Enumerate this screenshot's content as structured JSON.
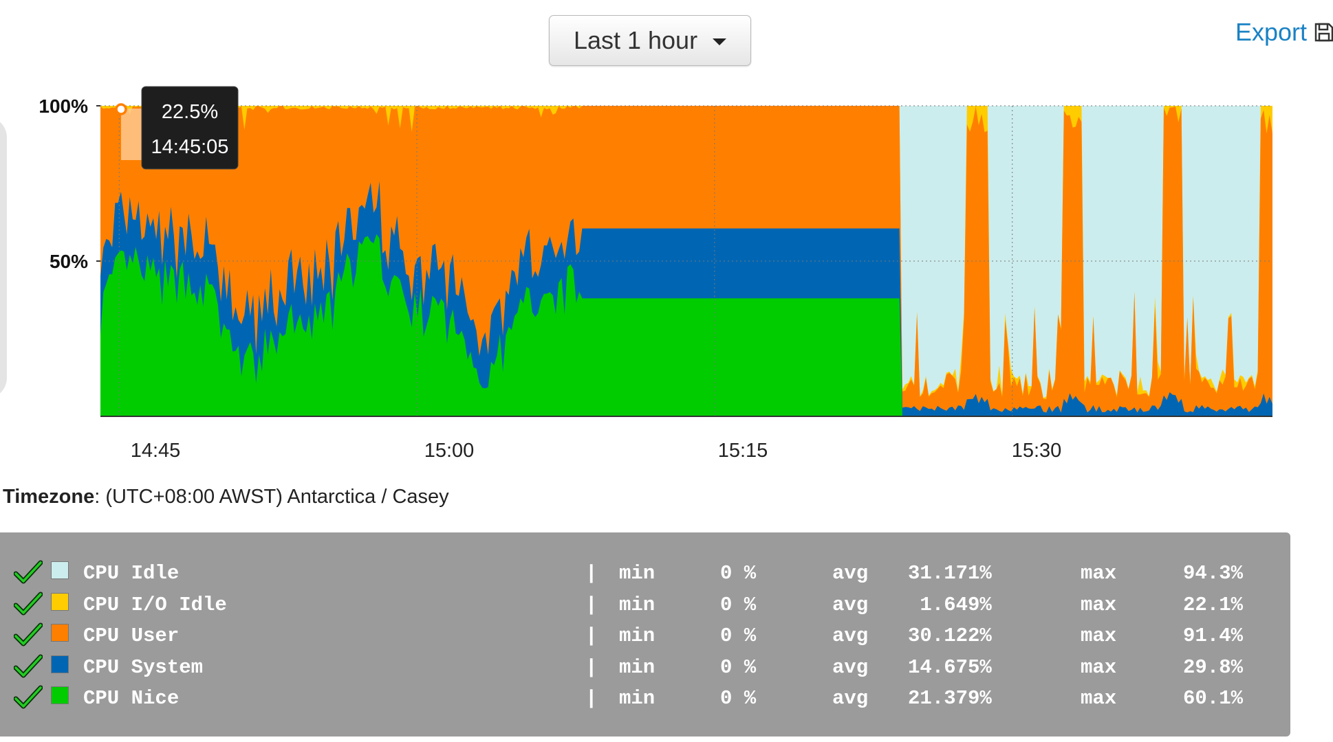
{
  "toolbar": {
    "range_label": "Last 1 hour",
    "export_label": "Export",
    "export_icon": "floppy-disk-icon"
  },
  "timezone": {
    "label": "Timezone",
    "value": ": (UTC+08:00 AWST) Antarctica / Casey"
  },
  "tooltip": {
    "value": "22.5%",
    "time": "14:45:05"
  },
  "chart_data": {
    "type": "area",
    "stacked": true,
    "yticks": [
      "100%",
      "50%"
    ],
    "ylim": [
      0,
      100
    ],
    "xticks": [
      "14:45",
      "15:00",
      "15:15",
      "15:30"
    ],
    "grid": true,
    "series": [
      {
        "name": "CPU Nice",
        "color": "#00cc00"
      },
      {
        "name": "CPU System",
        "color": "#0066b3"
      },
      {
        "name": "CPU User",
        "color": "#ff8000"
      },
      {
        "name": "CPU I/O Idle",
        "color": "#ffcc00"
      },
      {
        "name": "CPU Idle",
        "color": "#cceded"
      }
    ]
  },
  "legend": {
    "rows": [
      {
        "name": "CPU Idle",
        "color": "#cceded",
        "sep": "|",
        "min_label": "min",
        "min": "0 %",
        "avg_label": "avg",
        "avg": "31.171%",
        "max_label": "max",
        "max": "94.3%"
      },
      {
        "name": "CPU I/O Idle",
        "color": "#ffcc00",
        "sep": "|",
        "min_label": "min",
        "min": "0 %",
        "avg_label": "avg",
        "avg": " 1.649%",
        "max_label": "max",
        "max": "22.1%"
      },
      {
        "name": "CPU User",
        "color": "#ff8000",
        "sep": "|",
        "min_label": "min",
        "min": "0 %",
        "avg_label": "avg",
        "avg": "30.122%",
        "max_label": "max",
        "max": "91.4%"
      },
      {
        "name": "CPU System",
        "color": "#0066b3",
        "sep": "|",
        "min_label": "min",
        "min": "0 %",
        "avg_label": "avg",
        "avg": "14.675%",
        "max_label": "max",
        "max": "29.8%"
      },
      {
        "name": "CPU Nice",
        "color": "#00cc00",
        "sep": "|",
        "min_label": "min",
        "min": "0 %",
        "avg_label": "avg",
        "avg": "21.379%",
        "max_label": "max",
        "max": "60.1%"
      }
    ]
  }
}
